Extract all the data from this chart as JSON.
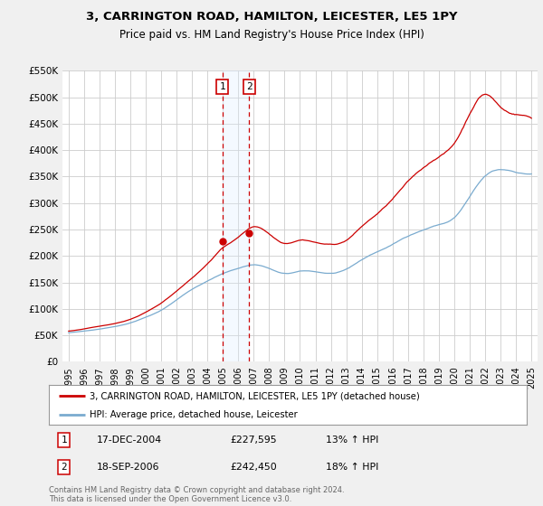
{
  "title": "3, CARRINGTON ROAD, HAMILTON, LEICESTER, LE5 1PY",
  "subtitle": "Price paid vs. HM Land Registry's House Price Index (HPI)",
  "ylim": [
    0,
    550000
  ],
  "yticks": [
    0,
    50000,
    100000,
    150000,
    200000,
    250000,
    300000,
    350000,
    400000,
    450000,
    500000,
    550000
  ],
  "ytick_labels": [
    "£0",
    "£50K",
    "£100K",
    "£150K",
    "£200K",
    "£250K",
    "£300K",
    "£350K",
    "£400K",
    "£450K",
    "£500K",
    "£550K"
  ],
  "bg_color": "#f0f0f0",
  "plot_bg_color": "#ffffff",
  "grid_color": "#cccccc",
  "red_line_color": "#cc0000",
  "blue_line_color": "#7aabcf",
  "vline_color": "#cc0000",
  "shade_color": "#ddeeff",
  "marker1_year": 2004.96,
  "marker2_year": 2006.71,
  "marker1_value": 227595,
  "marker2_value": 242450,
  "purchase1": {
    "label": "1",
    "date": "17-DEC-2004",
    "price": "£227,595",
    "hpi": "13% ↑ HPI"
  },
  "purchase2": {
    "label": "2",
    "date": "18-SEP-2006",
    "price": "£242,450",
    "hpi": "18% ↑ HPI"
  },
  "legend1": "3, CARRINGTON ROAD, HAMILTON, LEICESTER, LE5 1PY (detached house)",
  "legend2": "HPI: Average price, detached house, Leicester",
  "footnote": "Contains HM Land Registry data © Crown copyright and database right 2024.\nThis data is licensed under the Open Government Licence v3.0.",
  "xlim_left": 1994.6,
  "xlim_right": 2025.4
}
